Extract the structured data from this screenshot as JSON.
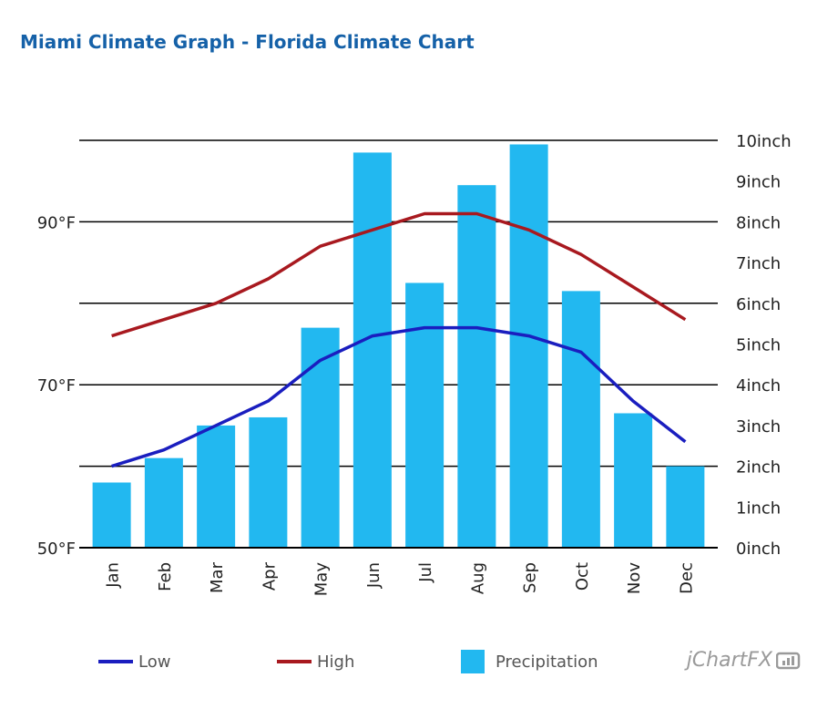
{
  "title": "Miami Climate Graph - Florida Climate Chart",
  "brand": "jChartFX",
  "colors": {
    "title": "#1561a8",
    "low": "#1a1ebf",
    "high": "#a8191f",
    "precipitation": "#22b8f0",
    "grid": "#000000",
    "text": "#222222",
    "legend_text": "#555555",
    "brand": "#9a9a9a"
  },
  "legend": {
    "low": "Low",
    "high": "High",
    "precipitation": "Precipitation"
  },
  "chart_data": {
    "type": "bar",
    "categories": [
      "Jan",
      "Feb",
      "Mar",
      "Apr",
      "May",
      "Jun",
      "Jul",
      "Aug",
      "Sep",
      "Oct",
      "Nov",
      "Dec"
    ],
    "series": [
      {
        "name": "Precipitation",
        "type": "bar",
        "axis": "right",
        "values": [
          1.6,
          2.2,
          3.0,
          3.2,
          5.4,
          9.7,
          6.5,
          8.9,
          9.9,
          6.3,
          3.3,
          2.0
        ]
      },
      {
        "name": "Low",
        "type": "line",
        "axis": "left",
        "values": [
          60,
          62,
          65,
          68,
          73,
          76,
          77,
          77,
          76,
          74,
          68,
          63
        ]
      },
      {
        "name": "High",
        "type": "line",
        "axis": "left",
        "values": [
          76,
          78,
          80,
          83,
          87,
          89,
          91,
          91,
          89,
          86,
          82,
          78
        ]
      }
    ],
    "y_left": {
      "min": 50,
      "max": 90,
      "ticks": [
        "50°F",
        "70°F",
        "90°F"
      ]
    },
    "y_right": {
      "min": 0,
      "max": 10,
      "ticks": [
        "0inch",
        "1inch",
        "2inch",
        "3inch",
        "4inch",
        "5inch",
        "6inch",
        "7inch",
        "8inch",
        "9inch",
        "10inch"
      ]
    },
    "grid": true,
    "legend_position": "bottom"
  }
}
